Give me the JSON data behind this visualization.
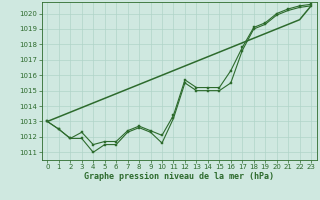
{
  "title": "Graphe pression niveau de la mer (hPa)",
  "bg_color": "#cfe8e0",
  "grid_color": "#b0d4c8",
  "line_color": "#2d6b2d",
  "ylim": [
    1010.5,
    1020.75
  ],
  "xlim": [
    -0.5,
    23.5
  ],
  "yticks": [
    1011,
    1012,
    1013,
    1014,
    1015,
    1016,
    1017,
    1018,
    1019,
    1020
  ],
  "xticks": [
    0,
    1,
    2,
    3,
    4,
    5,
    6,
    7,
    8,
    9,
    10,
    11,
    12,
    13,
    14,
    15,
    16,
    17,
    18,
    19,
    20,
    21,
    22,
    23
  ],
  "s1_y": [
    1013.0,
    1012.5,
    1011.9,
    1011.9,
    1011.0,
    1011.5,
    1011.5,
    1012.3,
    1012.6,
    1012.3,
    1011.6,
    1013.2,
    1015.5,
    1015.0,
    1015.0,
    1015.0,
    1015.5,
    1017.6,
    1019.0,
    1019.3,
    1019.9,
    1020.2,
    1020.4,
    1020.5
  ],
  "s2_y": [
    1013.0,
    1012.5,
    1011.9,
    1012.3,
    1011.5,
    1011.7,
    1011.7,
    1012.4,
    1012.7,
    1012.4,
    1012.1,
    1013.4,
    1015.7,
    1015.2,
    1015.2,
    1015.2,
    1016.3,
    1017.8,
    1019.1,
    1019.4,
    1020.0,
    1020.3,
    1020.5,
    1020.6
  ],
  "s3_y": [
    1013.0,
    1013.3,
    1013.6,
    1013.9,
    1014.2,
    1014.5,
    1014.8,
    1015.1,
    1015.4,
    1015.7,
    1016.0,
    1016.3,
    1016.6,
    1016.9,
    1017.2,
    1017.5,
    1017.8,
    1018.1,
    1018.4,
    1018.7,
    1019.0,
    1019.3,
    1019.6,
    1020.5
  ],
  "tick_fontsize": 5,
  "xlabel_fontsize": 6
}
